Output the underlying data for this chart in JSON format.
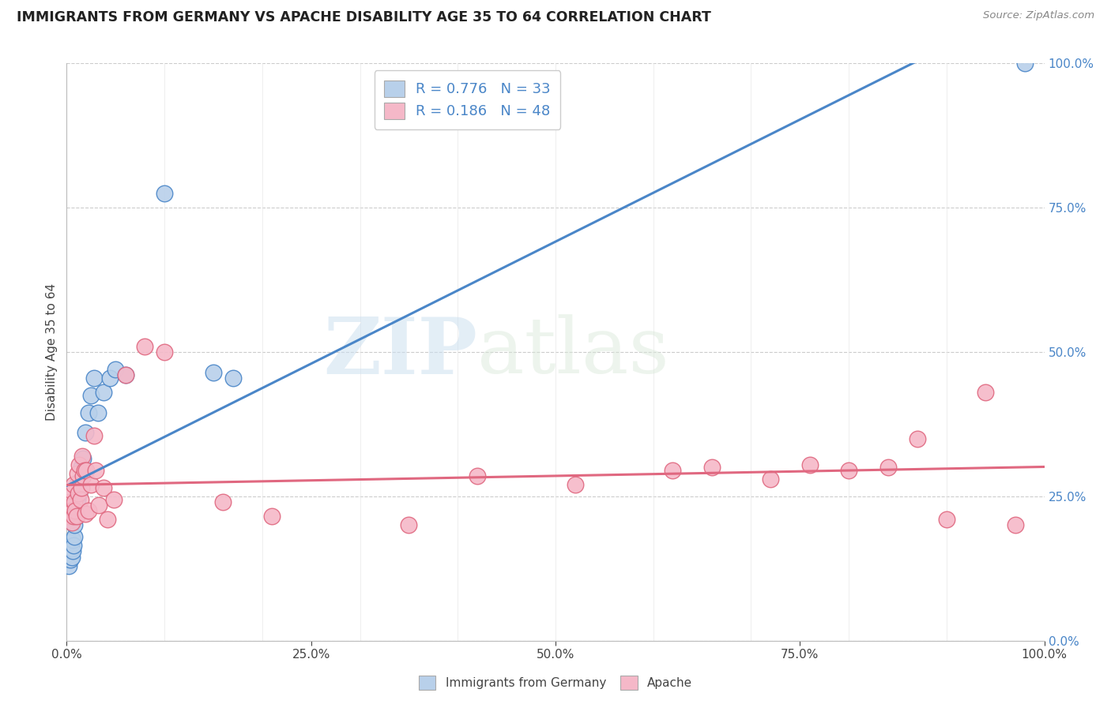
{
  "title": "IMMIGRANTS FROM GERMANY VS APACHE DISABILITY AGE 35 TO 64 CORRELATION CHART",
  "source": "Source: ZipAtlas.com",
  "ylabel": "Disability Age 35 to 64",
  "legend_label1": "Immigrants from Germany",
  "legend_label2": "Apache",
  "R1": 0.776,
  "N1": 33,
  "R2": 0.186,
  "N2": 48,
  "color_blue": "#b8d0ea",
  "color_pink": "#f5b8c8",
  "line_blue": "#4a86c8",
  "line_pink": "#e06880",
  "watermark_zip": "ZIP",
  "watermark_atlas": "atlas",
  "xlim": [
    0,
    1.0
  ],
  "ylim": [
    0,
    1.0
  ],
  "xticks": [
    0,
    0.25,
    0.5,
    0.75,
    1.0
  ],
  "yticks": [
    0,
    0.25,
    0.5,
    0.75,
    1.0
  ],
  "blue_x": [
    0.001,
    0.002,
    0.003,
    0.003,
    0.004,
    0.004,
    0.005,
    0.005,
    0.006,
    0.006,
    0.007,
    0.008,
    0.008,
    0.009,
    0.01,
    0.011,
    0.012,
    0.013,
    0.015,
    0.017,
    0.019,
    0.022,
    0.025,
    0.028,
    0.032,
    0.038,
    0.044,
    0.05,
    0.06,
    0.1,
    0.15,
    0.17,
    0.98
  ],
  "blue_y": [
    0.14,
    0.13,
    0.15,
    0.16,
    0.14,
    0.17,
    0.145,
    0.16,
    0.155,
    0.175,
    0.165,
    0.18,
    0.2,
    0.22,
    0.215,
    0.245,
    0.275,
    0.255,
    0.3,
    0.315,
    0.36,
    0.395,
    0.425,
    0.455,
    0.395,
    0.43,
    0.455,
    0.47,
    0.46,
    0.775,
    0.465,
    0.455,
    1.0
  ],
  "pink_x": [
    0.001,
    0.002,
    0.003,
    0.004,
    0.005,
    0.005,
    0.006,
    0.007,
    0.007,
    0.008,
    0.009,
    0.01,
    0.011,
    0.012,
    0.013,
    0.014,
    0.015,
    0.016,
    0.017,
    0.018,
    0.019,
    0.02,
    0.022,
    0.025,
    0.028,
    0.03,
    0.033,
    0.038,
    0.042,
    0.048,
    0.06,
    0.08,
    0.1,
    0.16,
    0.21,
    0.35,
    0.42,
    0.52,
    0.62,
    0.66,
    0.72,
    0.76,
    0.8,
    0.84,
    0.87,
    0.9,
    0.94,
    0.97
  ],
  "pink_y": [
    0.215,
    0.22,
    0.24,
    0.225,
    0.26,
    0.205,
    0.225,
    0.27,
    0.215,
    0.24,
    0.225,
    0.215,
    0.29,
    0.255,
    0.305,
    0.245,
    0.265,
    0.32,
    0.285,
    0.295,
    0.22,
    0.295,
    0.225,
    0.27,
    0.355,
    0.295,
    0.235,
    0.265,
    0.21,
    0.245,
    0.46,
    0.51,
    0.5,
    0.24,
    0.215,
    0.2,
    0.285,
    0.27,
    0.295,
    0.3,
    0.28,
    0.305,
    0.295,
    0.3,
    0.35,
    0.21,
    0.43,
    0.2
  ]
}
